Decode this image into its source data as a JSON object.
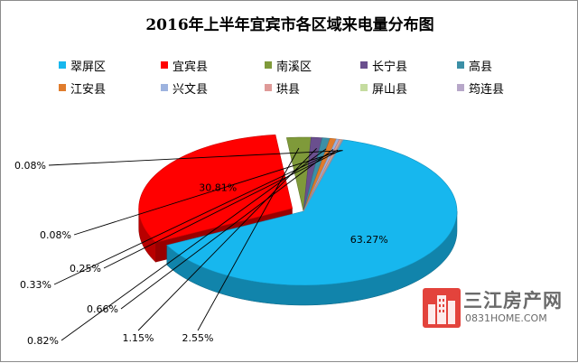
{
  "chart_data": {
    "type": "pie",
    "title": "2016年上半年宜宾市各区域来电量分布图",
    "legend_placement": "top",
    "series": [
      {
        "name": "翠屏区",
        "value": 63.27,
        "label": "63.27%",
        "color": "#17b7ee"
      },
      {
        "name": "宜宾县",
        "value": 30.81,
        "label": "30.81%",
        "color": "#ff0000"
      },
      {
        "name": "南溪区",
        "value": 2.55,
        "label": "2.55%",
        "color": "#7f9a3a"
      },
      {
        "name": "长宁县",
        "value": 1.15,
        "label": "1.15%",
        "color": "#6a4f8e"
      },
      {
        "name": "高县",
        "value": 0.82,
        "label": "0.82%",
        "color": "#3b8fa6"
      },
      {
        "name": "江安县",
        "value": 0.66,
        "label": "0.66%",
        "color": "#e07c2c"
      },
      {
        "name": "兴文县",
        "value": 0.33,
        "label": "0.33%",
        "color": "#9db3df"
      },
      {
        "name": "珙县",
        "value": 0.25,
        "label": "0.25%",
        "color": "#df9a98"
      },
      {
        "name": "屏山县",
        "value": 0.08,
        "label": "0.08%",
        "color": "#c5dca0"
      },
      {
        "name": "筠连县",
        "value": 0.08,
        "label": "0.08%",
        "color": "#b7a7c9"
      }
    ]
  },
  "watermark": {
    "name": "三江房产网",
    "url": "0831HOME.COM",
    "icon": "building-logo-icon",
    "color": "#e3433c"
  }
}
